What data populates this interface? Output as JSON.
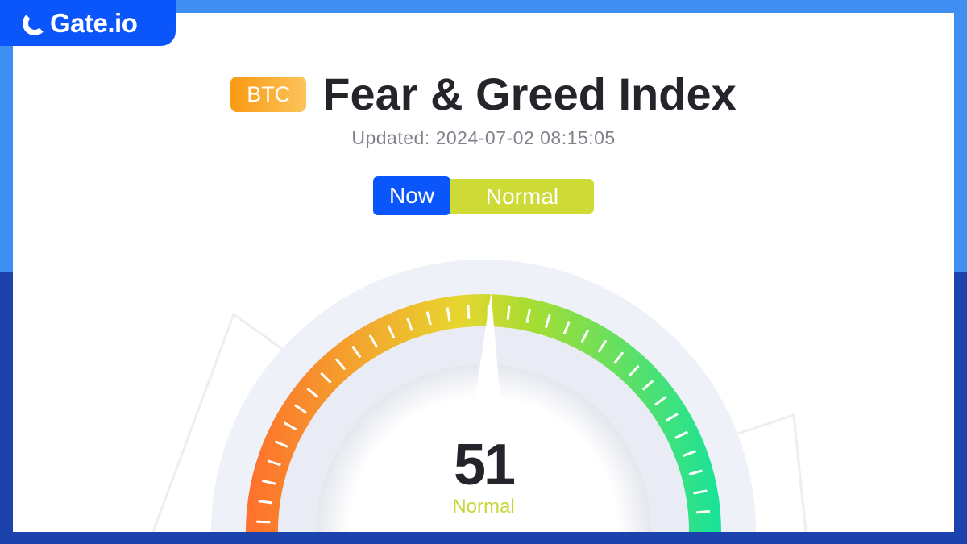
{
  "brand": {
    "logo_text": "Gate.io",
    "color": "#0a56fb"
  },
  "header": {
    "badge": "BTC",
    "title": "Fear & Greed Index",
    "updated": "Updated: 2024-07-02 08:15:05"
  },
  "status": {
    "now_label": "Now",
    "state": "Normal",
    "state_color": "#cedb37"
  },
  "gauge": {
    "value": 51,
    "min": 0,
    "max": 100,
    "label": "Normal",
    "colors": [
      "#fe6f2c",
      "#e8d62f",
      "#a6dd32",
      "#18e39a"
    ]
  }
}
